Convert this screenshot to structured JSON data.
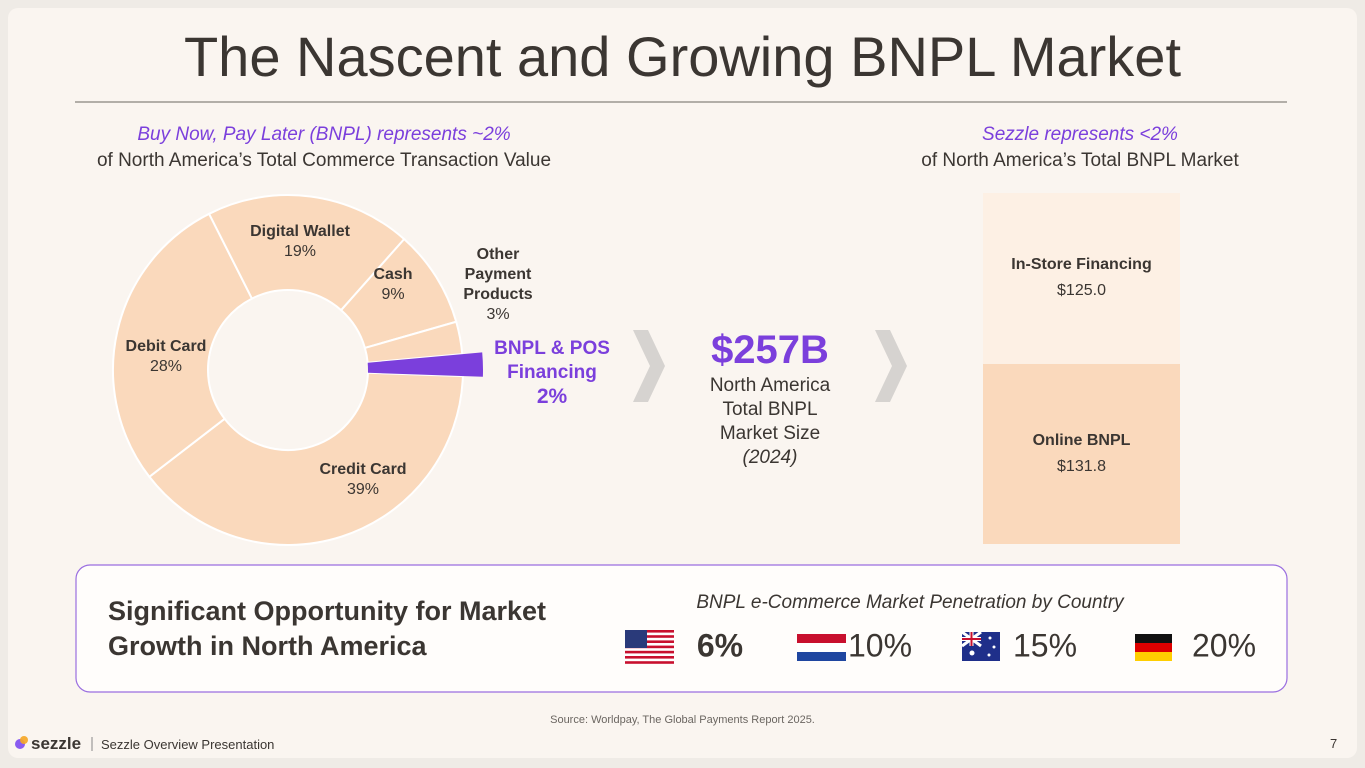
{
  "title": "The Nascent and Growing BNPL Market",
  "left_heading": {
    "highlight": "Buy Now, Pay Later (BNPL) represents ~2%",
    "text": "of North America’s Total Commerce Transaction Value"
  },
  "right_heading": {
    "highlight": "Sezzle represents <2%",
    "text": "of North America’s Total BNPL Market"
  },
  "chart_data": [
    {
      "type": "donut",
      "categories": [
        "Credit Card",
        "Debit Card",
        "Digital Wallet",
        "Cash",
        "Other Payment Products",
        "BNPL & POS Financing"
      ],
      "values": [
        39,
        28,
        19,
        9,
        3,
        2
      ],
      "value_labels": [
        "39%",
        "28%",
        "19%",
        "9%",
        "3%",
        "2%"
      ],
      "colors": [
        "#fad9bc",
        "#fad9bc",
        "#fad9bc",
        "#fad9bc",
        "#fad9bc",
        "#7b3fdc"
      ]
    },
    {
      "type": "stacked_bar",
      "series": [
        {
          "name": "Online BNPL",
          "color": "#fad9bc",
          "values": [
            131.8
          ],
          "value_labels": [
            "$131.8"
          ]
        },
        {
          "name": "In-Store Financing",
          "color": "#fdf0e4",
          "values": [
            125.0
          ],
          "value_labels": [
            "$125.0"
          ]
        }
      ]
    }
  ],
  "market_size": {
    "value": "$257B",
    "caption": "North America Total BNPL Market Size",
    "year": "(2024)"
  },
  "opportunity": {
    "title": "Significant Opportunity for Market Growth in North America",
    "subtitle": "BNPL e-Commerce Market Penetration by Country",
    "countries": [
      "6%",
      "10%",
      "15%",
      "20%"
    ]
  },
  "source": "Source: Worldpay, The Global Payments Report 2025.",
  "footer": {
    "brand": "sezzle",
    "text": "Sezzle Overview Presentation",
    "page": "7"
  }
}
